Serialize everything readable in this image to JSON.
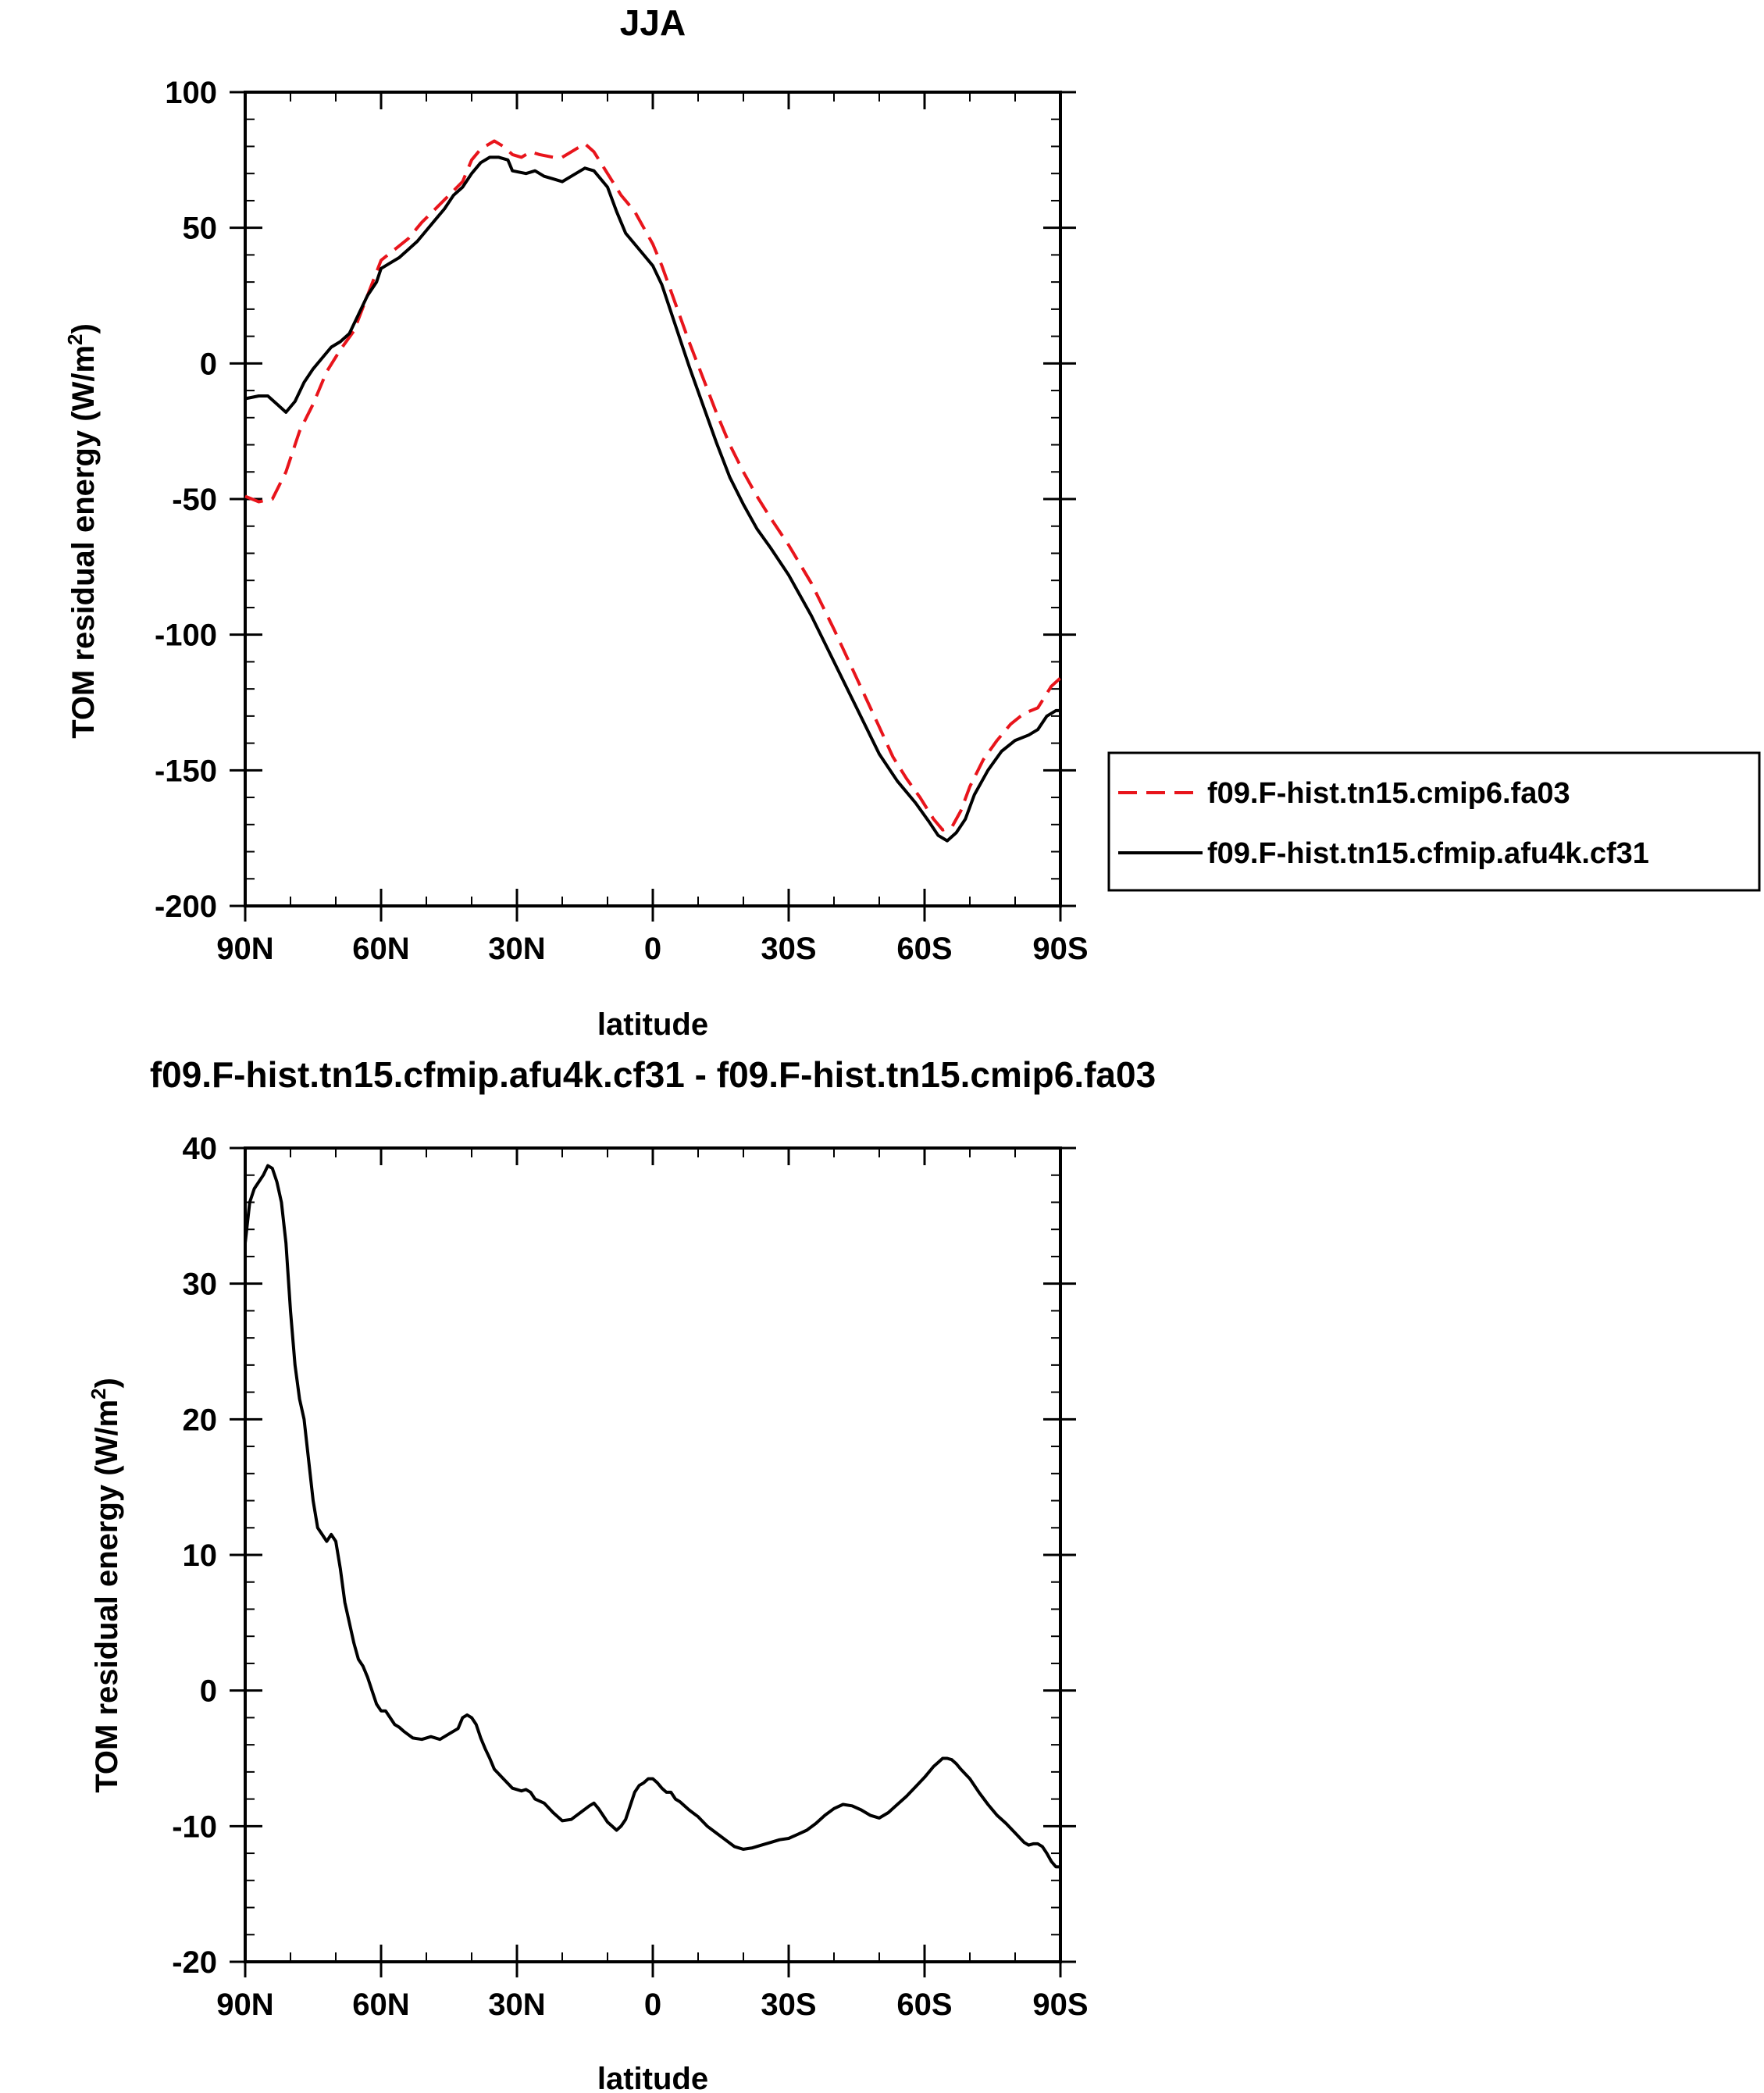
{
  "chart_data": [
    {
      "type": "line",
      "title": "JJA",
      "xlabel": "latitude",
      "ylabel": "TOM residual energy (W/m",
      "ylabel_superscript": "2",
      "ylabel_suffix": ")",
      "xlim": [
        90,
        -90
      ],
      "ylim": [
        -200,
        100
      ],
      "x_ticks": [
        90,
        60,
        30,
        0,
        -30,
        -60,
        -90
      ],
      "x_tick_labels": [
        "90N",
        "60N",
        "30N",
        "0",
        "30S",
        "60S",
        "90S"
      ],
      "y_ticks": [
        100,
        50,
        0,
        -50,
        -100,
        -150,
        -200
      ],
      "y_tick_labels": [
        "100",
        "50",
        "0",
        "-50",
        "-100",
        "-150",
        "-200"
      ],
      "legend_position": "right",
      "series": [
        {
          "name": "f09.F-hist.tn15.cmip6.fa03",
          "color": "#e8141b",
          "dash": "dashed",
          "points": [
            [
              90,
              -49
            ],
            [
              87,
              -51
            ],
            [
              84,
              -50
            ],
            [
              81,
              -40
            ],
            [
              78,
              -25
            ],
            [
              75,
              -15
            ],
            [
              72,
              -3
            ],
            [
              69,
              5
            ],
            [
              66,
              12
            ],
            [
              63,
              25
            ],
            [
              60,
              38
            ],
            [
              57,
              42
            ],
            [
              54,
              46
            ],
            [
              51,
              52
            ],
            [
              48,
              57
            ],
            [
              45,
              62
            ],
            [
              42,
              67
            ],
            [
              40,
              75
            ],
            [
              38,
              79
            ],
            [
              35,
              82
            ],
            [
              33,
              80
            ],
            [
              31,
              77
            ],
            [
              29,
              76
            ],
            [
              27,
              78
            ],
            [
              25,
              77
            ],
            [
              22,
              76
            ],
            [
              20,
              76
            ],
            [
              17,
              79
            ],
            [
              15,
              81
            ],
            [
              13,
              78
            ],
            [
              10,
              70
            ],
            [
              7,
              62
            ],
            [
              4,
              56
            ],
            [
              2,
              50
            ],
            [
              0,
              44
            ],
            [
              -2,
              36
            ],
            [
              -5,
              22
            ],
            [
              -8,
              8
            ],
            [
              -11,
              -5
            ],
            [
              -14,
              -18
            ],
            [
              -17,
              -30
            ],
            [
              -20,
              -40
            ],
            [
              -23,
              -49
            ],
            [
              -26,
              -57
            ],
            [
              -30,
              -67
            ],
            [
              -35,
              -81
            ],
            [
              -40,
              -98
            ],
            [
              -45,
              -116
            ],
            [
              -50,
              -134
            ],
            [
              -53,
              -145
            ],
            [
              -56,
              -153
            ],
            [
              -59,
              -160
            ],
            [
              -62,
              -168
            ],
            [
              -64,
              -172
            ],
            [
              -66,
              -171
            ],
            [
              -68,
              -165
            ],
            [
              -70,
              -156
            ],
            [
              -73,
              -146
            ],
            [
              -76,
              -139
            ],
            [
              -79,
              -133
            ],
            [
              -82,
              -129
            ],
            [
              -85,
              -127
            ],
            [
              -88,
              -119
            ],
            [
              -90,
              -116
            ]
          ]
        },
        {
          "name": "f09.F-hist.tn15.cfmip.afu4k.cf31",
          "color": "#000000",
          "dash": "solid",
          "points": [
            [
              90,
              -13
            ],
            [
              87,
              -12
            ],
            [
              85,
              -12
            ],
            [
              83,
              -15
            ],
            [
              81,
              -18
            ],
            [
              79,
              -14
            ],
            [
              77,
              -7
            ],
            [
              75,
              -2
            ],
            [
              73,
              2
            ],
            [
              71,
              6
            ],
            [
              69,
              8
            ],
            [
              67,
              11
            ],
            [
              65,
              18
            ],
            [
              63,
              25
            ],
            [
              61,
              30
            ],
            [
              60,
              35
            ],
            [
              58,
              37
            ],
            [
              56,
              39
            ],
            [
              54,
              42
            ],
            [
              52,
              45
            ],
            [
              50,
              49
            ],
            [
              48,
              53
            ],
            [
              46,
              57
            ],
            [
              44,
              62
            ],
            [
              42,
              65
            ],
            [
              40,
              70
            ],
            [
              38,
              74
            ],
            [
              36,
              76
            ],
            [
              34,
              76
            ],
            [
              32,
              75
            ],
            [
              31,
              71
            ],
            [
              28,
              70
            ],
            [
              26,
              71
            ],
            [
              24,
              69
            ],
            [
              22,
              68
            ],
            [
              20,
              67
            ],
            [
              18,
              69
            ],
            [
              15,
              72
            ],
            [
              13,
              71
            ],
            [
              10,
              65
            ],
            [
              8,
              56
            ],
            [
              6,
              48
            ],
            [
              4,
              44
            ],
            [
              2,
              40
            ],
            [
              0,
              36
            ],
            [
              -2,
              29
            ],
            [
              -5,
              14
            ],
            [
              -8,
              -1
            ],
            [
              -11,
              -15
            ],
            [
              -14,
              -29
            ],
            [
              -17,
              -42
            ],
            [
              -20,
              -52
            ],
            [
              -23,
              -61
            ],
            [
              -26,
              -68
            ],
            [
              -30,
              -78
            ],
            [
              -35,
              -93
            ],
            [
              -40,
              -110
            ],
            [
              -45,
              -127
            ],
            [
              -50,
              -144
            ],
            [
              -54,
              -154
            ],
            [
              -58,
              -162
            ],
            [
              -61,
              -169
            ],
            [
              -63,
              -174
            ],
            [
              -65,
              -176
            ],
            [
              -67,
              -173
            ],
            [
              -69,
              -168
            ],
            [
              -71,
              -159
            ],
            [
              -74,
              -150
            ],
            [
              -77,
              -143
            ],
            [
              -80,
              -139
            ],
            [
              -83,
              -137
            ],
            [
              -85,
              -135
            ],
            [
              -87,
              -130
            ],
            [
              -89,
              -128
            ],
            [
              -90,
              -128
            ]
          ]
        }
      ]
    },
    {
      "type": "line",
      "title": "f09.F-hist.tn15.cfmip.afu4k.cf31 - f09.F-hist.tn15.cmip6.fa03",
      "xlabel": "latitude",
      "ylabel": "TOM residual energy (W/m",
      "ylabel_superscript": "2",
      "ylabel_suffix": ")",
      "xlim": [
        90,
        -90
      ],
      "ylim": [
        -20,
        40
      ],
      "x_ticks": [
        90,
        60,
        30,
        0,
        -30,
        -60,
        -90
      ],
      "x_tick_labels": [
        "90N",
        "60N",
        "30N",
        "0",
        "30S",
        "60S",
        "90S"
      ],
      "y_ticks": [
        40,
        30,
        20,
        10,
        0,
        -10,
        -20
      ],
      "y_tick_labels": [
        "40",
        "30",
        "20",
        "10",
        "0",
        "-10",
        "-20"
      ],
      "series": [
        {
          "color": "#000000",
          "dash": "solid",
          "points": [
            [
              90,
              33
            ],
            [
              89,
              36
            ],
            [
              88,
              37
            ],
            [
              87,
              37.5
            ],
            [
              86,
              38
            ],
            [
              85,
              38.7
            ],
            [
              84,
              38.5
            ],
            [
              83,
              37.5
            ],
            [
              82,
              36
            ],
            [
              81,
              33
            ],
            [
              80,
              28
            ],
            [
              79,
              24
            ],
            [
              78,
              21.5
            ],
            [
              77,
              20
            ],
            [
              76,
              17
            ],
            [
              75,
              14
            ],
            [
              74,
              12
            ],
            [
              73,
              11.5
            ],
            [
              72,
              11
            ],
            [
              71,
              11.5
            ],
            [
              70,
              11
            ],
            [
              69,
              9
            ],
            [
              68,
              6.5
            ],
            [
              67,
              5
            ],
            [
              66,
              3.5
            ],
            [
              65,
              2.3
            ],
            [
              64,
              1.8
            ],
            [
              63,
              1
            ],
            [
              62,
              0
            ],
            [
              61,
              -1
            ],
            [
              60,
              -1.5
            ],
            [
              59,
              -1.5
            ],
            [
              58,
              -2
            ],
            [
              57,
              -2.5
            ],
            [
              56,
              -2.7
            ],
            [
              55,
              -3
            ],
            [
              53,
              -3.5
            ],
            [
              51,
              -3.6
            ],
            [
              49,
              -3.4
            ],
            [
              47,
              -3.6
            ],
            [
              45,
              -3.2
            ],
            [
              43,
              -2.8
            ],
            [
              42,
              -2
            ],
            [
              41,
              -1.8
            ],
            [
              40,
              -2
            ],
            [
              39,
              -2.5
            ],
            [
              38,
              -3.5
            ],
            [
              37,
              -4.3
            ],
            [
              36,
              -5
            ],
            [
              35,
              -5.8
            ],
            [
              33,
              -6.5
            ],
            [
              31,
              -7.2
            ],
            [
              29,
              -7.4
            ],
            [
              28,
              -7.3
            ],
            [
              27,
              -7.5
            ],
            [
              26,
              -8
            ],
            [
              24,
              -8.3
            ],
            [
              22,
              -9
            ],
            [
              20,
              -9.6
            ],
            [
              18,
              -9.5
            ],
            [
              16,
              -9
            ],
            [
              14,
              -8.5
            ],
            [
              13,
              -8.3
            ],
            [
              12,
              -8.7
            ],
            [
              11,
              -9.2
            ],
            [
              10,
              -9.7
            ],
            [
              9,
              -10
            ],
            [
              8,
              -10.3
            ],
            [
              7,
              -10
            ],
            [
              6,
              -9.5
            ],
            [
              5,
              -8.5
            ],
            [
              4,
              -7.5
            ],
            [
              3,
              -7
            ],
            [
              2,
              -6.8
            ],
            [
              1,
              -6.5
            ],
            [
              0,
              -6.5
            ],
            [
              -1,
              -6.8
            ],
            [
              -2,
              -7.2
            ],
            [
              -3,
              -7.5
            ],
            [
              -4,
              -7.5
            ],
            [
              -5,
              -8
            ],
            [
              -6,
              -8.2
            ],
            [
              -8,
              -8.8
            ],
            [
              -10,
              -9.3
            ],
            [
              -12,
              -10
            ],
            [
              -14,
              -10.5
            ],
            [
              -16,
              -11
            ],
            [
              -18,
              -11.5
            ],
            [
              -20,
              -11.7
            ],
            [
              -22,
              -11.6
            ],
            [
              -24,
              -11.4
            ],
            [
              -26,
              -11.2
            ],
            [
              -28,
              -11
            ],
            [
              -30,
              -10.9
            ],
            [
              -32,
              -10.6
            ],
            [
              -34,
              -10.3
            ],
            [
              -36,
              -9.8
            ],
            [
              -38,
              -9.2
            ],
            [
              -40,
              -8.7
            ],
            [
              -42,
              -8.4
            ],
            [
              -44,
              -8.5
            ],
            [
              -46,
              -8.8
            ],
            [
              -48,
              -9.2
            ],
            [
              -50,
              -9.4
            ],
            [
              -52,
              -9
            ],
            [
              -54,
              -8.4
            ],
            [
              -56,
              -7.8
            ],
            [
              -58,
              -7.1
            ],
            [
              -60,
              -6.4
            ],
            [
              -62,
              -5.6
            ],
            [
              -63,
              -5.3
            ],
            [
              -64,
              -5
            ],
            [
              -65,
              -5
            ],
            [
              -66,
              -5.1
            ],
            [
              -67,
              -5.4
            ],
            [
              -68,
              -5.8
            ],
            [
              -70,
              -6.5
            ],
            [
              -72,
              -7.5
            ],
            [
              -74,
              -8.4
            ],
            [
              -76,
              -9.2
            ],
            [
              -78,
              -9.8
            ],
            [
              -80,
              -10.5
            ],
            [
              -82,
              -11.2
            ],
            [
              -83,
              -11.4
            ],
            [
              -84,
              -11.3
            ],
            [
              -85,
              -11.3
            ],
            [
              -86,
              -11.5
            ],
            [
              -87,
              -12
            ],
            [
              -88,
              -12.6
            ],
            [
              -89,
              -13
            ],
            [
              -90,
              -13
            ]
          ]
        }
      ]
    }
  ]
}
